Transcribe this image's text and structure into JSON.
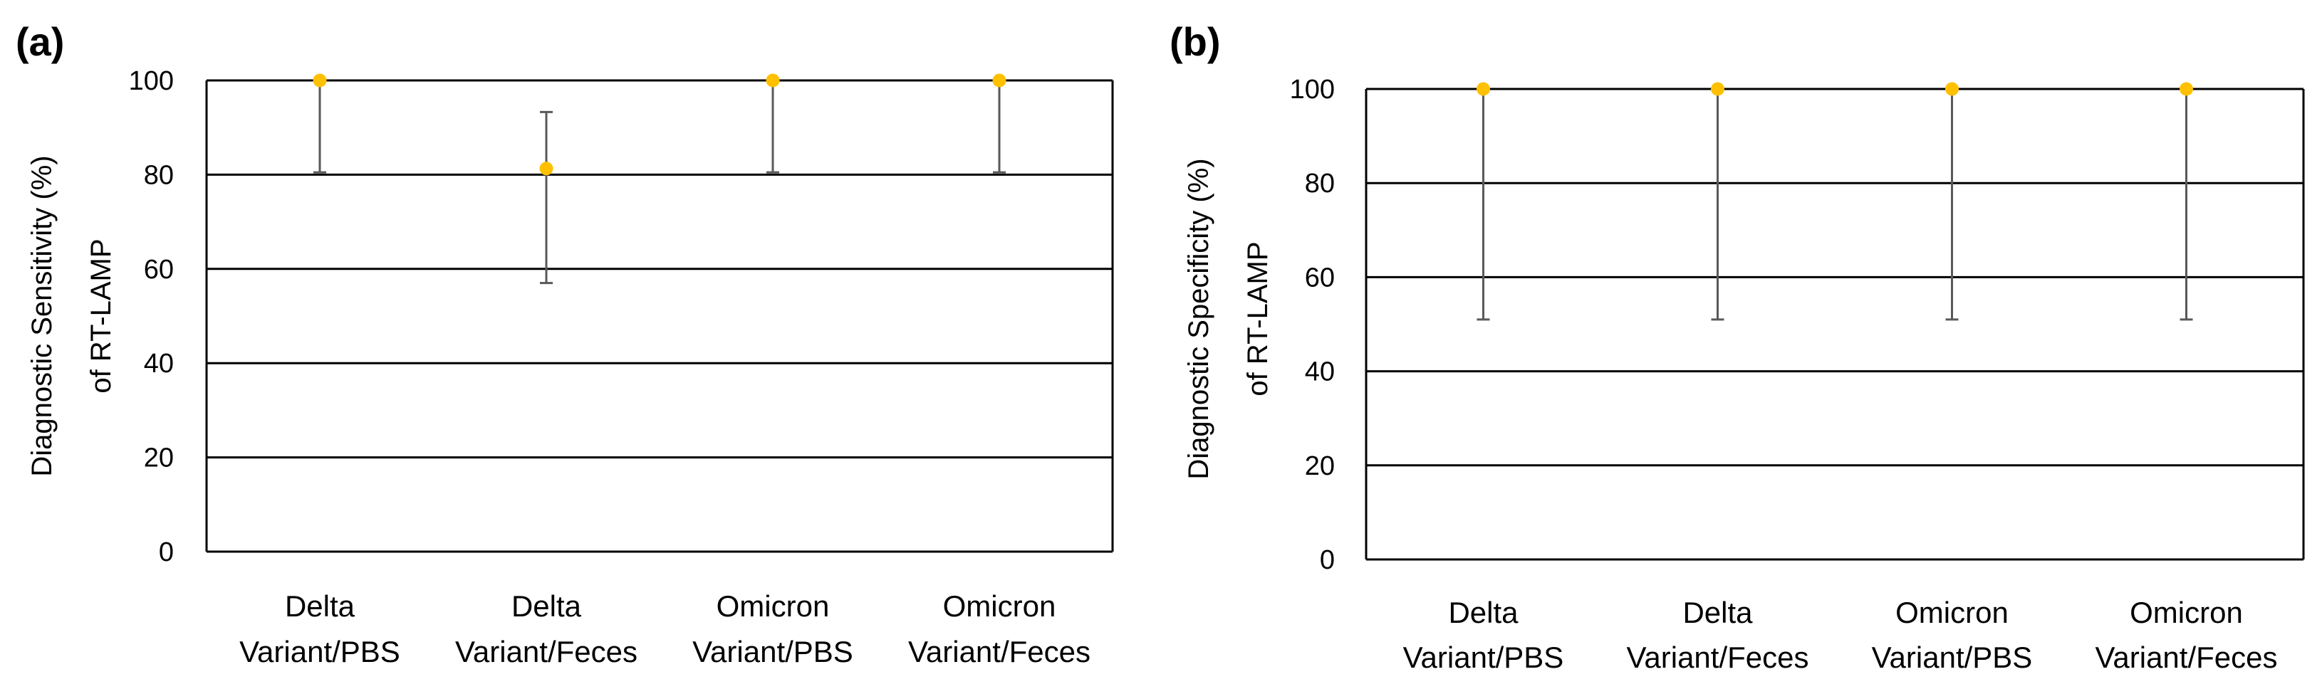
{
  "chart_data": [
    {
      "type": "scatter",
      "panel_label": "(a)",
      "title": "",
      "xlabel": "",
      "ylabel_lines": [
        "Diagnostic Sensitivity (%)",
        "of RT-LAMP"
      ],
      "ylim": [
        0,
        100
      ],
      "yticks": [
        0,
        20,
        40,
        60,
        80,
        100
      ],
      "grid": true,
      "categories": [
        [
          "Delta",
          "Variant/PBS"
        ],
        [
          "Delta",
          "Variant/Feces"
        ],
        [
          "Omicron",
          "Variant/PBS"
        ],
        [
          "Omicron",
          "Variant/Feces"
        ]
      ],
      "series": [
        {
          "values": [
            100,
            81.3,
            100,
            100
          ],
          "error_low": [
            80.5,
            57.0,
            80.5,
            80.5
          ],
          "error_high": [
            100,
            93.3,
            100,
            100
          ]
        }
      ],
      "colors": {
        "point": "#FFC000",
        "errorbar": "#595959",
        "axis": "#000000",
        "grid": "#000000"
      }
    },
    {
      "type": "scatter",
      "panel_label": "(b)",
      "title": "",
      "xlabel": "",
      "ylabel_lines": [
        "Diagnostic Specificity (%)",
        "of RT-LAMP"
      ],
      "ylim": [
        0,
        100
      ],
      "yticks": [
        0,
        20,
        40,
        60,
        80,
        100
      ],
      "grid": true,
      "categories": [
        [
          "Delta",
          "Variant/PBS"
        ],
        [
          "Delta",
          "Variant/Feces"
        ],
        [
          "Omicron",
          "Variant/PBS"
        ],
        [
          "Omicron",
          "Variant/Feces"
        ]
      ],
      "series": [
        {
          "values": [
            100,
            100,
            100,
            100
          ],
          "error_low": [
            51.0,
            51.0,
            51.0,
            51.0
          ],
          "error_high": [
            100,
            100,
            100,
            100
          ]
        }
      ],
      "colors": {
        "point": "#FFC000",
        "errorbar": "#595959",
        "axis": "#000000",
        "grid": "#000000"
      }
    }
  ]
}
